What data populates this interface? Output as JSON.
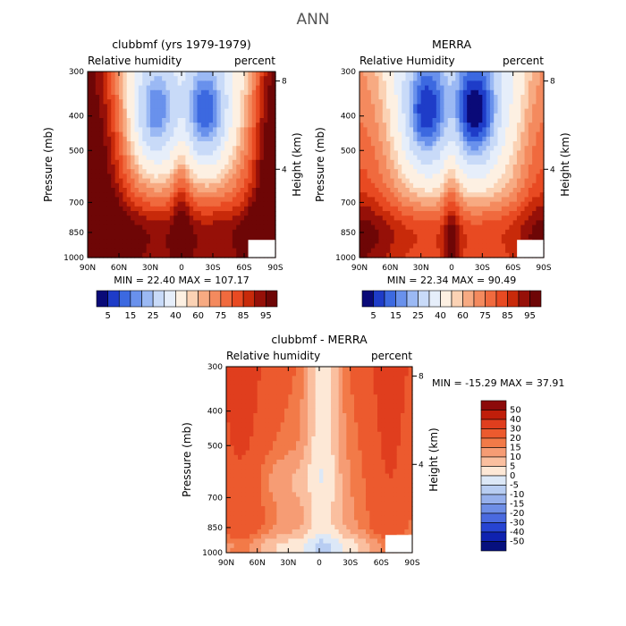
{
  "figure_title": "ANN",
  "chart_data": [
    {
      "type": "contour",
      "panel_title": "clubbmf (yrs 1979-1979)",
      "left_label": "Relative humidity",
      "right_label": "percent",
      "ylabel": "Pressure (mb)",
      "ylabel_right": "Height (km)",
      "x_ticks": [
        "90N",
        "60N",
        "30N",
        "0",
        "30S",
        "60S",
        "90S"
      ],
      "y_ticks": [
        "300",
        "400",
        "500",
        "700",
        "850",
        "1000"
      ],
      "y_ticks_right": [
        "8",
        "4"
      ],
      "stats_text": "MIN =  22.40   MAX = 107.17",
      "min": 22.4,
      "max": 107.17,
      "colorbar_labels": [
        "5",
        "15",
        "25",
        "40",
        "60",
        "75",
        "85",
        "95"
      ]
    },
    {
      "type": "contour",
      "panel_title": "MERRA",
      "left_label": "Relative Humidity",
      "right_label": "percent",
      "ylabel": "Pressure (mb)",
      "ylabel_right": "Height (km)",
      "x_ticks": [
        "90N",
        "60N",
        "30N",
        "0",
        "30S",
        "60S",
        "90S"
      ],
      "y_ticks": [
        "300",
        "400",
        "500",
        "700",
        "850",
        "1000"
      ],
      "y_ticks_right": [
        "8",
        "4"
      ],
      "stats_text": "MIN =  22.34   MAX =  90.49",
      "min": 22.34,
      "max": 90.49,
      "colorbar_labels": [
        "5",
        "15",
        "25",
        "40",
        "60",
        "75",
        "85",
        "95"
      ]
    },
    {
      "type": "contour",
      "panel_title": "clubbmf - MERRA",
      "left_label": "Relative humidity",
      "right_label": "percent",
      "ylabel": "Pressure (mb)",
      "ylabel_right": "Height (km)",
      "x_ticks": [
        "90N",
        "60N",
        "30N",
        "0",
        "30S",
        "60S",
        "90S"
      ],
      "y_ticks": [
        "300",
        "400",
        "500",
        "700",
        "850",
        "1000"
      ],
      "y_ticks_right": [
        "8",
        "4"
      ],
      "stats_text": "MIN = -15.29   MAX =  37.91",
      "min": -15.29,
      "max": 37.91,
      "colorbar_labels": [
        "50",
        "40",
        "30",
        "20",
        "15",
        "10",
        "5",
        "0",
        "-5",
        "-10",
        "-15",
        "-20",
        "-30",
        "-40",
        "-50"
      ]
    }
  ],
  "colors": {
    "rh_scale": [
      "#0a0a78",
      "#1e3cc8",
      "#3c69e0",
      "#6991ec",
      "#9bb9f4",
      "#c8daf8",
      "#e6eefa",
      "#fdf0e2",
      "#fbd2b4",
      "#f7aa82",
      "#f48a5e",
      "#f06a3e",
      "#e84a22",
      "#c82a0a",
      "#961008",
      "#6e0606"
    ],
    "diff_scale": [
      "#8c0a0a",
      "#c01e0a",
      "#e03e1e",
      "#ec5a2e",
      "#f27a48",
      "#f69c74",
      "#fabf9f",
      "#fde8d6",
      "#dce8f7",
      "#b8cdf2",
      "#96b0ec",
      "#6e8ee6",
      "#4a6adf",
      "#2744d2",
      "#0f22b0",
      "#06107e"
    ]
  }
}
